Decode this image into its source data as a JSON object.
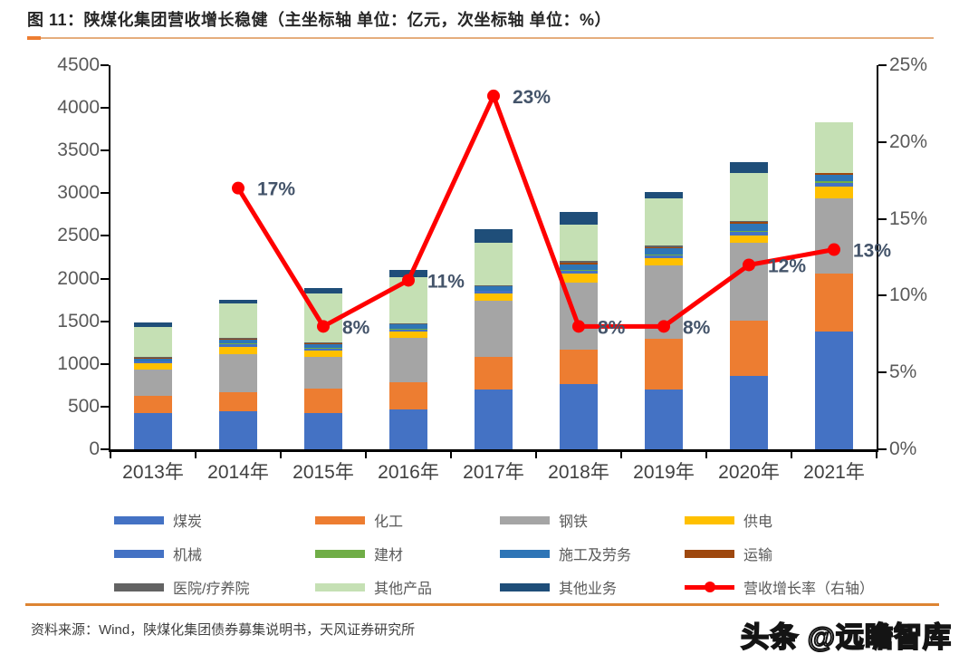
{
  "header": {
    "title": "图 11：陕煤化集团营收增长稳健（主坐标轴 单位：亿元，次坐标轴 单位：%）"
  },
  "chart_data": {
    "type": "bar",
    "subtype": "stacked-bars-with-line",
    "title": "图 11：陕煤化集团营收增长稳健（主坐标轴 单位：亿元，次坐标轴 单位：%）",
    "categories": [
      "2013年",
      "2014年",
      "2015年",
      "2016年",
      "2017年",
      "2018年",
      "2019年",
      "2020年",
      "2021年"
    ],
    "bar_unit": "亿元",
    "line_unit": "%",
    "grid": "off",
    "legend_position": "bottom",
    "left_axis": {
      "min": 0,
      "max": 4500,
      "step": 500,
      "ticks": [
        "4500",
        "4000",
        "3500",
        "3000",
        "2500",
        "2000",
        "1500",
        "1000",
        "500",
        "0"
      ]
    },
    "right_axis": {
      "min": 0,
      "max": 25,
      "step": 5,
      "ticks": [
        "25%",
        "20%",
        "15%",
        "10%",
        "5%",
        "0%"
      ]
    },
    "series": [
      {
        "name": "煤炭",
        "color": "#4472c4",
        "values": [
          430,
          450,
          420,
          470,
          705,
          765,
          705,
          865,
          1385
        ]
      },
      {
        "name": "化工",
        "color": "#ed7d31",
        "values": [
          200,
          215,
          290,
          320,
          375,
          405,
          590,
          640,
          675
        ]
      },
      {
        "name": "钢铁",
        "color": "#a5a5a5",
        "values": [
          300,
          450,
          370,
          515,
          660,
          785,
          855,
          910,
          875
        ]
      },
      {
        "name": "供电",
        "color": "#ffc000",
        "values": [
          75,
          90,
          80,
          80,
          90,
          105,
          90,
          95,
          145
        ]
      },
      {
        "name": "机械",
        "color": "#4472c4",
        "values": [
          25,
          30,
          20,
          20,
          25,
          30,
          30,
          35,
          40
        ]
      },
      {
        "name": "建材",
        "color": "#70ad47",
        "values": [
          5,
          5,
          5,
          5,
          5,
          10,
          10,
          10,
          25
        ]
      },
      {
        "name": "施工及劳务",
        "color": "#2e75b6",
        "values": [
          30,
          45,
          50,
          50,
          50,
          70,
          80,
          90,
          70
        ]
      },
      {
        "name": "运输",
        "color": "#9e480e",
        "values": [
          5,
          15,
          5,
          5,
          5,
          20,
          10,
          15,
          20
        ]
      },
      {
        "name": "医院/疗养院",
        "color": "#636363",
        "values": [
          10,
          10,
          10,
          10,
          10,
          15,
          15,
          10,
          5
        ]
      },
      {
        "name": "其他产品",
        "color": "#c5e0b4",
        "values": [
          355,
          395,
          580,
          540,
          495,
          430,
          555,
          570,
          595
        ]
      },
      {
        "name": "其他业务",
        "color": "#1f4e79",
        "values": [
          55,
          50,
          60,
          85,
          160,
          145,
          70,
          130,
          0
        ]
      }
    ],
    "line_series": {
      "name": "营收增长率（右轴）",
      "color": "#ff0000",
      "values": [
        null,
        17,
        8,
        11,
        23,
        8,
        8,
        12,
        13
      ],
      "labels": [
        null,
        "17%",
        "8%",
        "11%",
        "23%",
        "8%",
        "8%",
        "12%",
        "13%"
      ]
    }
  },
  "footer": {
    "source": "资料来源：Wind，陕煤化集团债券募集说明书，天风证券研究所",
    "watermark": "头条 @远瞻智库"
  }
}
